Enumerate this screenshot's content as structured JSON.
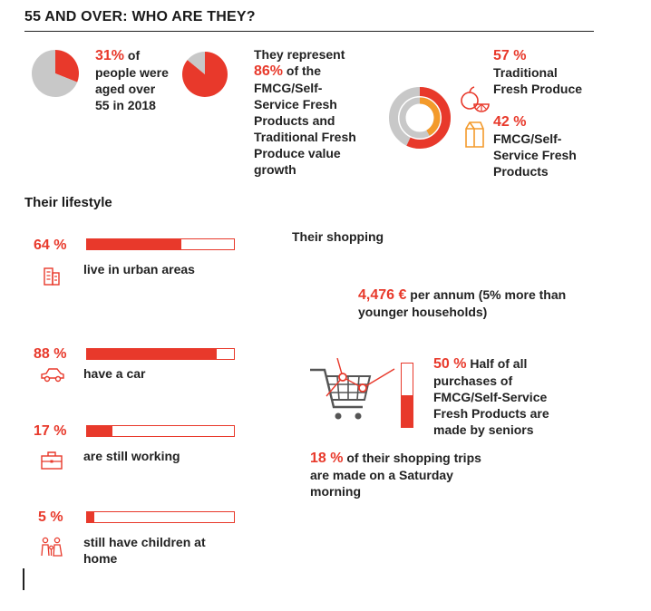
{
  "title": "55 AND OVER: WHO ARE THEY?",
  "colors": {
    "accent": "#e8392b",
    "grey": "#c8c8c8",
    "orange": "#f39a2b"
  },
  "chart_data": [
    {
      "type": "pie",
      "slices": [
        {
          "label": "aged over 55",
          "value": 31,
          "color": "#e8392b"
        },
        {
          "label": "other",
          "value": 69,
          "color": "#c8c8c8"
        }
      ]
    },
    {
      "type": "pie",
      "slices": [
        {
          "label": "FMCG/Self-Service Fresh Products and Traditional Fresh Produce value growth",
          "value": 86,
          "color": "#e8392b"
        },
        {
          "label": "other",
          "value": 14,
          "color": "#c8c8c8"
        }
      ]
    },
    {
      "type": "donut",
      "rings": [
        {
          "label": "Traditional Fresh Produce",
          "value": 57,
          "color": "#e8392b"
        },
        {
          "label": "FMCG/Self-Service Fresh Products",
          "value": 42,
          "color": "#f39a2b"
        }
      ]
    },
    {
      "type": "bar",
      "orientation": "horizontal",
      "categories": [
        "live in urban areas",
        "have a car",
        "are still working",
        "still have children at home"
      ],
      "values": [
        64,
        88,
        17,
        5
      ],
      "xlim": [
        0,
        100
      ]
    },
    {
      "type": "bar",
      "orientation": "vertical",
      "categories": [
        "Half of all purchases of FMCG/Self-Service Fresh Products are made by seniors"
      ],
      "values": [
        50
      ],
      "ylim": [
        0,
        100
      ]
    }
  ],
  "stats": {
    "aged": {
      "pct": "31%",
      "text_l1": " of",
      "text_l2": "people were",
      "text_l3": "aged over",
      "text_l4": "55 in 2018"
    },
    "represent": {
      "l1": "They represent",
      "pct": "86%",
      "l2": " of the",
      "l3": "FMCG/Self-",
      "l4": "Service Fresh",
      "l5": "Products and",
      "l6": "Traditional Fresh",
      "l7": "Produce value",
      "l8": "growth"
    },
    "traditional": {
      "pct": "57 %",
      "l1": "Traditional",
      "l2": "Fresh Produce"
    },
    "fmcg": {
      "pct": "42 %",
      "l1": "FMCG/Self-",
      "l2": "Service Fresh",
      "l3": "Products"
    }
  },
  "lifestyle": {
    "heading": "Their lifestyle",
    "items": [
      {
        "pct": "64 %",
        "label": "live in urban areas",
        "value": 64,
        "icon": "building-icon"
      },
      {
        "pct": "88 %",
        "label": "have a car",
        "value": 88,
        "icon": "car-icon"
      },
      {
        "pct": "17 %",
        "label": "are still working",
        "value": 17,
        "icon": "briefcase-icon"
      },
      {
        "pct": "5 %",
        "label_l1": "still have children at",
        "label_l2": "home",
        "value": 5,
        "icon": "family-icon"
      }
    ]
  },
  "shopping": {
    "heading": "Their shopping",
    "spend": {
      "amount": "4,476 €",
      "l1": " per annum (5% more than",
      "l2": "younger households)"
    },
    "purchases": {
      "pct": "50 %",
      "l1": " Half of all",
      "l2": "purchases of",
      "l3": "FMCG/Self-Service",
      "l4": "Fresh Products are",
      "l5": "made by seniors",
      "value": 50
    },
    "saturday": {
      "pct": "18 %",
      "l1": " of their shopping trips",
      "l2": "are made on a Saturday",
      "l3": "morning"
    }
  }
}
